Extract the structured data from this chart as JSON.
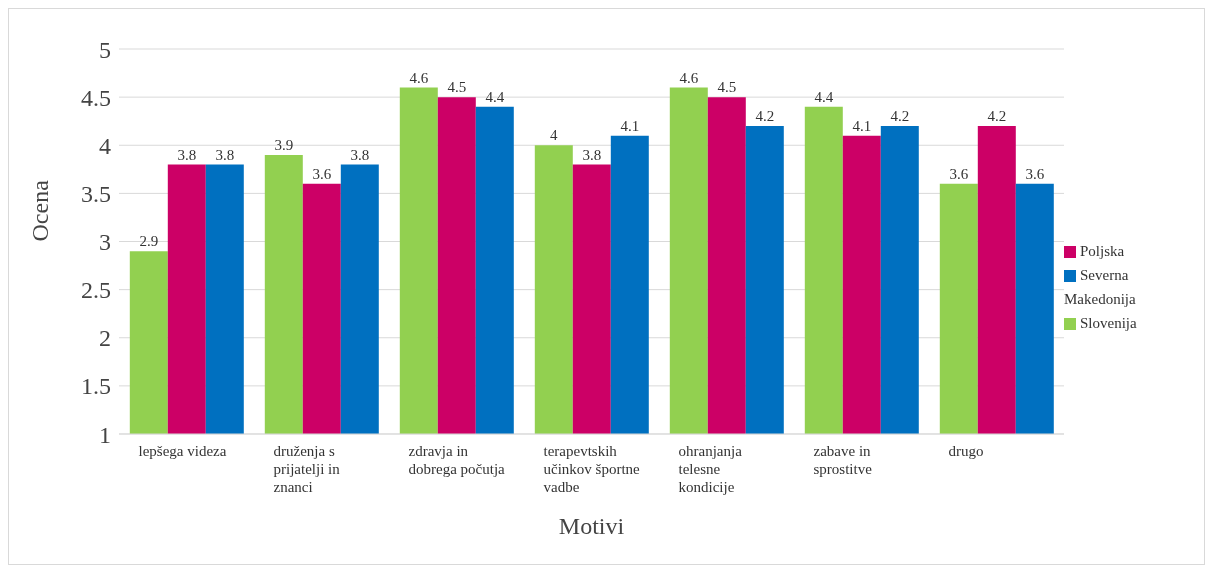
{
  "chart_data": {
    "type": "bar",
    "xlabel": "Motivi",
    "ylabel": "Ocena",
    "categories": [
      "lepšega videza",
      "druženja s prijatelji in znanci",
      "zdravja in dobrega počutja",
      "terapevtskih učinkov športne vadbe",
      "ohranjanja telesne kondicije",
      "zabave in sprostitve",
      "drugo"
    ],
    "series": [
      {
        "name": "Slovenija",
        "color": "#92d050",
        "values": [
          2.9,
          3.9,
          4.6,
          4,
          4.6,
          4.4,
          3.6
        ]
      },
      {
        "name": "Poljska",
        "color": "#cc0066",
        "values": [
          3.8,
          3.6,
          4.5,
          3.8,
          4.5,
          4.1,
          4.2
        ]
      },
      {
        "name": "Severna Makedonija",
        "color": "#0070c0",
        "values": [
          3.8,
          3.8,
          4.4,
          4.1,
          4.2,
          4.2,
          3.6
        ]
      }
    ],
    "ylim": [
      1,
      5
    ],
    "yticks": [
      1,
      1.5,
      2,
      2.5,
      3,
      3.5,
      4,
      4.5,
      5
    ],
    "grid": "y",
    "legend": "right",
    "data_labels": true
  }
}
